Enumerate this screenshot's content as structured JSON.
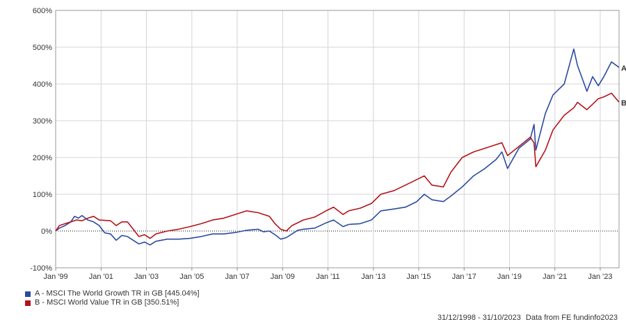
{
  "chart_data": {
    "type": "line",
    "ylim": [
      -100,
      600
    ],
    "xlim": [
      "1998-12-31",
      "2023-10-31"
    ],
    "y_ticks": [
      "600%",
      "500%",
      "400%",
      "300%",
      "200%",
      "100%",
      "0%",
      "-100%"
    ],
    "y_tick_values": [
      600,
      500,
      400,
      300,
      200,
      100,
      0,
      -100
    ],
    "x_ticks": [
      "Jan '99",
      "Jan '01",
      "Jan '03",
      "Jan '05",
      "Jan '07",
      "Jan '09",
      "Jan '11",
      "Jan '13",
      "Jan '15",
      "Jan '17",
      "Jan '19",
      "Jan '21",
      "Jan '23"
    ],
    "x_tick_dates": [
      "1999-01-01",
      "2001-01-01",
      "2003-01-01",
      "2005-01-01",
      "2007-01-01",
      "2009-01-01",
      "2011-01-01",
      "2013-01-01",
      "2015-01-01",
      "2017-01-01",
      "2019-01-01",
      "2021-01-01",
      "2023-01-01"
    ],
    "grid": true,
    "series": [
      {
        "name": "A - MSCI The World Growth TR in GB [445.04%]",
        "end_label": "A",
        "color": "#2b4aa0",
        "points": [
          [
            "1998-12-31",
            0
          ],
          [
            "1999-03-01",
            8
          ],
          [
            "1999-06-01",
            15
          ],
          [
            "1999-09-01",
            25
          ],
          [
            "1999-11-01",
            40
          ],
          [
            "2000-01-01",
            35
          ],
          [
            "2000-03-01",
            42
          ],
          [
            "2000-06-01",
            30
          ],
          [
            "2000-09-01",
            25
          ],
          [
            "2000-12-01",
            15
          ],
          [
            "2001-03-01",
            -5
          ],
          [
            "2001-06-01",
            -8
          ],
          [
            "2001-09-01",
            -25
          ],
          [
            "2001-12-01",
            -12
          ],
          [
            "2002-03-01",
            -15
          ],
          [
            "2002-06-01",
            -25
          ],
          [
            "2002-09-01",
            -35
          ],
          [
            "2002-12-01",
            -30
          ],
          [
            "2003-03-01",
            -38
          ],
          [
            "2003-06-01",
            -28
          ],
          [
            "2003-12-01",
            -22
          ],
          [
            "2004-06-01",
            -22
          ],
          [
            "2004-12-01",
            -20
          ],
          [
            "2005-06-01",
            -15
          ],
          [
            "2005-12-01",
            -8
          ],
          [
            "2006-06-01",
            -8
          ],
          [
            "2006-12-01",
            -4
          ],
          [
            "2007-06-01",
            2
          ],
          [
            "2007-12-01",
            5
          ],
          [
            "2008-03-01",
            -2
          ],
          [
            "2008-06-01",
            0
          ],
          [
            "2008-09-01",
            -10
          ],
          [
            "2008-12-01",
            -22
          ],
          [
            "2009-03-01",
            -18
          ],
          [
            "2009-06-01",
            -8
          ],
          [
            "2009-09-01",
            2
          ],
          [
            "2009-12-01",
            5
          ],
          [
            "2010-06-01",
            8
          ],
          [
            "2010-12-01",
            22
          ],
          [
            "2011-04-01",
            30
          ],
          [
            "2011-09-01",
            12
          ],
          [
            "2011-12-01",
            18
          ],
          [
            "2012-06-01",
            20
          ],
          [
            "2012-12-01",
            30
          ],
          [
            "2013-05-01",
            55
          ],
          [
            "2013-12-01",
            60
          ],
          [
            "2014-06-01",
            65
          ],
          [
            "2014-12-01",
            80
          ],
          [
            "2015-04-01",
            100
          ],
          [
            "2015-08-01",
            85
          ],
          [
            "2016-02-01",
            80
          ],
          [
            "2016-06-01",
            95
          ],
          [
            "2016-12-01",
            120
          ],
          [
            "2017-06-01",
            150
          ],
          [
            "2017-12-01",
            170
          ],
          [
            "2018-06-01",
            195
          ],
          [
            "2018-09-01",
            215
          ],
          [
            "2018-12-01",
            170
          ],
          [
            "2019-06-01",
            225
          ],
          [
            "2019-12-01",
            250
          ],
          [
            "2020-02-01",
            290
          ],
          [
            "2020-03-01",
            220
          ],
          [
            "2020-08-01",
            320
          ],
          [
            "2020-12-01",
            370
          ],
          [
            "2021-06-01",
            400
          ],
          [
            "2021-11-01",
            495
          ],
          [
            "2022-01-01",
            450
          ],
          [
            "2022-06-01",
            380
          ],
          [
            "2022-09-01",
            420
          ],
          [
            "2022-12-01",
            395
          ],
          [
            "2023-03-01",
            420
          ],
          [
            "2023-07-01",
            460
          ],
          [
            "2023-10-31",
            445.04
          ]
        ]
      },
      {
        "name": "B - MSCI World Value TR in GB [350.51%]",
        "end_label": "B",
        "color": "#b3131b",
        "points": [
          [
            "1998-12-31",
            0
          ],
          [
            "1999-03-01",
            15
          ],
          [
            "1999-06-01",
            20
          ],
          [
            "1999-09-01",
            25
          ],
          [
            "1999-12-01",
            30
          ],
          [
            "2000-03-01",
            28
          ],
          [
            "2000-06-01",
            35
          ],
          [
            "2000-09-01",
            40
          ],
          [
            "2000-12-01",
            30
          ],
          [
            "2001-06-01",
            28
          ],
          [
            "2001-09-01",
            15
          ],
          [
            "2001-12-01",
            25
          ],
          [
            "2002-03-01",
            25
          ],
          [
            "2002-06-01",
            5
          ],
          [
            "2002-09-01",
            -15
          ],
          [
            "2002-12-01",
            -10
          ],
          [
            "2003-03-01",
            -20
          ],
          [
            "2003-06-01",
            -8
          ],
          [
            "2003-12-01",
            0
          ],
          [
            "2004-06-01",
            5
          ],
          [
            "2004-12-01",
            12
          ],
          [
            "2005-06-01",
            20
          ],
          [
            "2005-12-01",
            30
          ],
          [
            "2006-06-01",
            35
          ],
          [
            "2006-12-01",
            45
          ],
          [
            "2007-06-01",
            55
          ],
          [
            "2007-12-01",
            50
          ],
          [
            "2008-03-01",
            45
          ],
          [
            "2008-06-01",
            40
          ],
          [
            "2008-09-01",
            20
          ],
          [
            "2008-12-01",
            5
          ],
          [
            "2009-03-01",
            0
          ],
          [
            "2009-06-01",
            15
          ],
          [
            "2009-12-01",
            30
          ],
          [
            "2010-06-01",
            38
          ],
          [
            "2010-12-01",
            55
          ],
          [
            "2011-04-01",
            65
          ],
          [
            "2011-09-01",
            45
          ],
          [
            "2011-12-01",
            55
          ],
          [
            "2012-06-01",
            62
          ],
          [
            "2012-12-01",
            75
          ],
          [
            "2013-05-01",
            100
          ],
          [
            "2013-12-01",
            110
          ],
          [
            "2014-06-01",
            125
          ],
          [
            "2014-12-01",
            140
          ],
          [
            "2015-04-01",
            150
          ],
          [
            "2015-08-01",
            125
          ],
          [
            "2016-02-01",
            120
          ],
          [
            "2016-06-01",
            160
          ],
          [
            "2016-12-01",
            200
          ],
          [
            "2017-06-01",
            215
          ],
          [
            "2017-12-01",
            225
          ],
          [
            "2018-06-01",
            235
          ],
          [
            "2018-09-01",
            240
          ],
          [
            "2018-12-01",
            205
          ],
          [
            "2019-06-01",
            230
          ],
          [
            "2019-12-01",
            255
          ],
          [
            "2020-02-01",
            240
          ],
          [
            "2020-03-01",
            175
          ],
          [
            "2020-08-01",
            220
          ],
          [
            "2020-12-01",
            275
          ],
          [
            "2021-06-01",
            315
          ],
          [
            "2021-11-01",
            335
          ],
          [
            "2022-01-01",
            350
          ],
          [
            "2022-06-01",
            330
          ],
          [
            "2022-09-01",
            345
          ],
          [
            "2022-12-01",
            360
          ],
          [
            "2023-03-01",
            365
          ],
          [
            "2023-07-01",
            375
          ],
          [
            "2023-10-31",
            350.51
          ]
        ]
      }
    ]
  },
  "legend": [
    {
      "label": "A - MSCI The World Growth TR in GB [445.04%]",
      "color": "#2b4aa0"
    },
    {
      "label": "B - MSCI World Value TR in GB [350.51%]",
      "color": "#b3131b"
    }
  ],
  "footer": {
    "date_range": "31/12/1998 - 31/10/2023",
    "source": "Data from FE fundinfo2023"
  }
}
